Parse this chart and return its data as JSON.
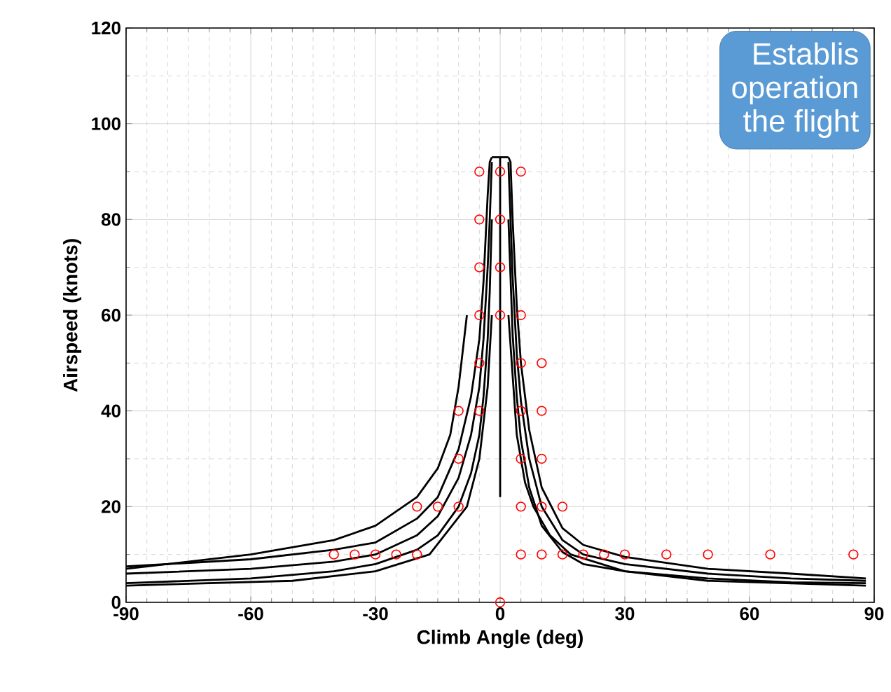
{
  "chart_data": {
    "type": "line",
    "xlabel": "Climb Angle (deg)",
    "ylabel": "Airspeed (knots)",
    "xlim": [
      -90,
      90
    ],
    "ylim": [
      0,
      120
    ],
    "xticks": [
      -90,
      -60,
      -30,
      0,
      30,
      60,
      90
    ],
    "yticks": [
      0,
      20,
      40,
      60,
      80,
      100,
      120
    ],
    "grid": true,
    "annotations": [
      "Establis",
      "operation",
      "the flight"
    ],
    "series": [
      {
        "color": "#000000",
        "x": [
          -90,
          -60,
          -40,
          -30,
          -20,
          -15,
          -10,
          -7,
          -5,
          -4,
          -3,
          -2.5,
          -2
        ],
        "values": [
          4,
          5,
          6.5,
          8,
          11,
          14,
          20,
          27,
          35,
          43,
          55,
          65,
          80
        ]
      },
      {
        "color": "#000000",
        "x": [
          -90,
          -60,
          -40,
          -30,
          -20,
          -15,
          -10,
          -7,
          -5,
          -4,
          -3,
          -2.5,
          -2
        ],
        "values": [
          6,
          7,
          8.5,
          10,
          14,
          18,
          26,
          35,
          45,
          55,
          70,
          80,
          92
        ]
      },
      {
        "color": "#000000",
        "x": [
          -90,
          -60,
          -40,
          -30,
          -20,
          -15,
          -10,
          -7,
          -5,
          -4,
          -3,
          -2.5,
          -2
        ],
        "values": [
          7.5,
          9,
          11,
          12.5,
          17.5,
          22,
          32,
          43,
          55,
          67,
          85,
          92,
          93
        ]
      },
      {
        "color": "#000000",
        "x": [
          2,
          2.5,
          3,
          4,
          5,
          7,
          10,
          15,
          20,
          30,
          50,
          70,
          88
        ],
        "values": [
          80,
          68,
          56,
          43,
          34,
          24,
          16,
          10.5,
          8,
          6.5,
          5,
          4.2,
          4
        ]
      },
      {
        "color": "#000000",
        "x": [
          2,
          2.5,
          3,
          4,
          5,
          7,
          10,
          15,
          20,
          30,
          50,
          70,
          88
        ],
        "values": [
          92,
          80,
          68,
          52,
          42,
          30,
          20,
          13,
          10,
          8,
          6,
          5,
          4.5
        ]
      },
      {
        "color": "#000000",
        "x": [
          2,
          2.5,
          3,
          4,
          5,
          7,
          10,
          15,
          20,
          30,
          50,
          70,
          88
        ],
        "values": [
          93,
          92,
          80,
          62,
          50,
          36,
          24,
          15.5,
          12,
          9.5,
          7,
          6,
          5
        ]
      },
      {
        "color": "#000000",
        "x": [
          -90,
          -60,
          -40,
          -30,
          -20,
          -15,
          -12,
          -10,
          -8
        ],
        "values": [
          7,
          10,
          13,
          16,
          22,
          28,
          35,
          45,
          60
        ]
      },
      {
        "color": "#000000",
        "x": [
          -90,
          -50,
          -30,
          -17,
          -8,
          -5,
          -3,
          -2
        ],
        "values": [
          3.5,
          4.5,
          6.5,
          10,
          20,
          30,
          45,
          60
        ]
      },
      {
        "color": "#000000",
        "x": [
          2,
          4,
          6,
          8,
          12,
          17,
          30,
          50,
          88
        ],
        "values": [
          60,
          35,
          25,
          20,
          14,
          10,
          6.5,
          4.5,
          3.5
        ]
      },
      {
        "color": "#000000",
        "x": [
          0,
          0
        ],
        "values": [
          22,
          93
        ]
      },
      {
        "color": "#000000",
        "x": [
          -2,
          2
        ],
        "values": [
          93,
          93
        ]
      },
      {
        "type": "scatter",
        "color": "#ff0000",
        "marker": "circle",
        "x": [
          -5,
          0,
          5,
          -5,
          0,
          -5,
          0,
          -5,
          0,
          5,
          -5,
          5,
          10,
          -10,
          -5,
          5,
          10,
          -10,
          5,
          10,
          -20,
          -15,
          -10,
          5,
          10,
          15,
          -40,
          -35,
          -30,
          -25,
          -20,
          5,
          10,
          15,
          20,
          25,
          30,
          40,
          50,
          65,
          85,
          0
        ],
        "values": [
          90,
          90,
          90,
          80,
          80,
          70,
          70,
          60,
          60,
          60,
          50,
          50,
          50,
          40,
          40,
          40,
          40,
          30,
          30,
          30,
          20,
          20,
          20,
          20,
          20,
          20,
          10,
          10,
          10,
          10,
          10,
          10,
          10,
          10,
          10,
          10,
          10,
          10,
          10,
          10,
          10,
          0
        ]
      }
    ]
  }
}
